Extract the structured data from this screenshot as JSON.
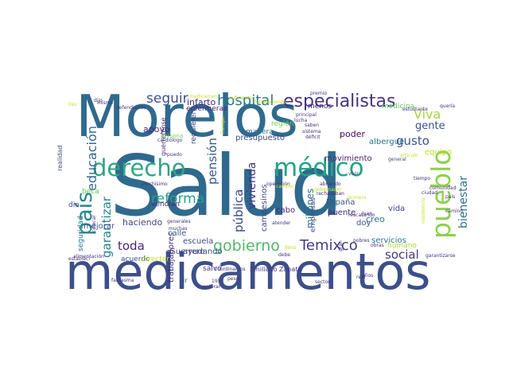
{
  "title": "",
  "colors": {
    "background": "#ffffff",
    "palette": [
      "#2f6a8e",
      "#3b5f8c",
      "#31a584",
      "#21918c",
      "#51b96a",
      "#8cd149",
      "#b5de2b",
      "#443b84",
      "#482576",
      "#46317e"
    ]
  },
  "words": [
    {
      "text": "Salud",
      "color": "#2f6a8e"
    },
    {
      "text": "Morelos",
      "color": "#2f6a8e"
    },
    {
      "text": "medicamentos",
      "color": "#3b4f8a"
    },
    {
      "text": "derecho",
      "color": "#31a584"
    },
    {
      "text": "médico",
      "color": "#21a685"
    },
    {
      "text": "pueblo",
      "color": "#8cd149"
    },
    {
      "text": "país",
      "color": "#25858e"
    },
    {
      "text": "especialistas",
      "color": "#46317e"
    },
    {
      "text": "hospital",
      "color": "#2a788e"
    },
    {
      "text": "gobierno",
      "color": "#51b96a"
    },
    {
      "text": "seguir",
      "color": "#3b528b"
    },
    {
      "text": "Temixco",
      "color": "#443b84"
    },
    {
      "text": "reforma",
      "color": "#2a9d8f"
    },
    {
      "text": "Viva",
      "color": "#a7d63c"
    },
    {
      "text": "educación",
      "color": "#31688e"
    },
    {
      "text": "bienestar",
      "color": "#2c728e"
    },
    {
      "text": "gusto",
      "color": "#3b528b"
    },
    {
      "text": "pensión",
      "color": "#38598c"
    },
    {
      "text": "pública",
      "color": "#3e4989"
    },
    {
      "text": "social",
      "color": "#443983"
    },
    {
      "text": "toda",
      "color": "#482374"
    },
    {
      "text": "garantizar",
      "color": "#26828e"
    },
    {
      "text": "vivienda",
      "color": "#46337e"
    },
    {
      "text": "gente",
      "color": "#3b528b"
    },
    {
      "text": "infarto",
      "color": "#482576"
    },
    {
      "text": "apoyo",
      "color": "#482878"
    },
    {
      "text": "millones",
      "color": "#2c728e"
    },
    {
      "text": "presupuesto",
      "color": "#3f4788"
    },
    {
      "text": "campesinos",
      "color": "#414487"
    },
    {
      "text": "movimiento",
      "color": "#482374"
    },
    {
      "text": "poder",
      "color": "#440154"
    },
    {
      "text": "albergue",
      "color": "#2c728e"
    },
    {
      "text": "equipo",
      "color": "#bddf26"
    },
    {
      "text": "región",
      "color": "#7ad151"
    },
    {
      "text": "manera",
      "color": "#2c728e"
    },
    {
      "text": "haciendo",
      "color": "#404688"
    },
    {
      "text": "escuela",
      "color": "#3e4a89"
    },
    {
      "text": "Guerrero",
      "color": "#414487"
    },
    {
      "text": "trabajadores",
      "color": "#472c7a"
    },
    {
      "text": "ayudando",
      "color": "#3b528b"
    },
    {
      "text": "calle",
      "color": "#38598c"
    },
    {
      "text": "vendían",
      "color": "#482878"
    },
    {
      "text": "mejorar",
      "color": "#38598c"
    },
    {
      "text": "seguridad",
      "color": "#2a788e"
    },
    {
      "text": "creo",
      "color": "#2a788e"
    },
    {
      "text": "vida",
      "color": "#414487"
    },
    {
      "text": "España",
      "color": "#3b528b"
    },
    {
      "text": "puente",
      "color": "#482576"
    },
    {
      "text": "doy",
      "color": "#3b528b"
    },
    {
      "text": "servicios",
      "color": "#2c728e"
    },
    {
      "text": "cabo",
      "color": "#482576"
    },
    {
      "text": "salvó",
      "color": "#46337e"
    },
    {
      "text": "requieren",
      "color": "#414487"
    },
    {
      "text": "enfermeras",
      "color": "#482576"
    },
    {
      "text": "acuerdo",
      "color": "#3b528b"
    },
    {
      "text": "director",
      "color": "#c2df23"
    },
    {
      "text": "guerrerense",
      "color": "#472f7d"
    },
    {
      "text": "medicina",
      "color": "#5ec962"
    },
    {
      "text": "menos",
      "color": "#482374"
    },
    {
      "text": "dio",
      "color": "#3e4a89"
    },
    {
      "text": "beca",
      "color": "#5ec962"
    },
    {
      "text": "realidad",
      "color": "#3f4788"
    },
    {
      "text": "ir",
      "color": "#3b528b"
    },
    {
      "text": "humano",
      "color": "#a5db36"
    },
    {
      "text": "empresas",
      "color": "#3b528b"
    },
    {
      "text": "persona",
      "color": "#7ad151"
    },
    {
      "text": "lucha",
      "color": "#46337e"
    },
    {
      "text": "principal",
      "color": "#46337e"
    },
    {
      "text": "Europa",
      "color": "#b5de2b"
    },
    {
      "text": "general",
      "color": "#404688"
    },
    {
      "text": "rechazaban",
      "color": "#482374"
    },
    {
      "text": "Juan",
      "color": "#443983"
    },
    {
      "text": "saben",
      "color": "#46337e"
    },
    {
      "text": "sistema",
      "color": "#46337e"
    },
    {
      "text": "déficit",
      "color": "#46337e"
    },
    {
      "text": "premio",
      "color": "#46337e"
    },
    {
      "text": "gobernador",
      "color": "#bddf26"
    },
    {
      "text": "abriendo",
      "color": "#482576"
    },
    {
      "text": "Emiliano Zapata",
      "color": "#443983"
    },
    {
      "text": "Coordinamos",
      "color": "#46337e"
    },
    {
      "text": "atender",
      "color": "#46337e"
    },
    {
      "text": "resistencia",
      "color": "#c8e020"
    },
    {
      "text": "rescatando",
      "color": "#46337e"
    },
    {
      "text": "garantizarse",
      "color": "#46337e"
    },
    {
      "text": "alimentación",
      "color": "#46337e"
    },
    {
      "text": "fantasma",
      "color": "#46337e"
    },
    {
      "text": "generales",
      "color": "#46337e"
    },
    {
      "text": "muchas",
      "color": "#46337e"
    },
    {
      "text": "pesos",
      "color": "#46337e"
    },
    {
      "text": "dijo",
      "color": "#46337e"
    },
    {
      "text": "estudiante",
      "color": "#46337e"
    },
    {
      "text": "quería",
      "color": "#46337e"
    },
    {
      "text": "suficiente",
      "color": "#c2df23"
    },
    {
      "text": "medicamen",
      "color": "#c2df23"
    },
    {
      "text": "fortaleciendo",
      "color": "#c2df23"
    },
    {
      "text": "mismo",
      "color": "#46337e"
    },
    {
      "text": "defendiendo",
      "color": "#46337e"
    },
    {
      "text": "cardiólogo",
      "color": "#46337e"
    },
    {
      "text": "muchísimo",
      "color": "#46337e"
    },
    {
      "text": "sector",
      "color": "#46337e"
    },
    {
      "text": "1955",
      "color": "#46337e"
    },
    {
      "text": "enterar",
      "color": "#46337e"
    },
    {
      "text": "puedo",
      "color": "#46337e"
    },
    {
      "text": "obras",
      "color": "#46337e"
    },
    {
      "text": "operación",
      "color": "#46337e"
    },
    {
      "text": "artículo",
      "color": "#c8e020"
    },
    {
      "text": "colocar",
      "color": "#46337e"
    },
    {
      "text": "estableci",
      "color": "#46337e"
    },
    {
      "text": "liso",
      "color": "#c8e020"
    },
    {
      "text": "real",
      "color": "#46337e"
    },
    {
      "text": "cambio",
      "color": "#c8e020"
    },
    {
      "text": "camino",
      "color": "#46337e"
    },
    {
      "text": "primero",
      "color": "#c2df23"
    },
    {
      "text": "comunidad",
      "color": "#46337e"
    },
    {
      "text": "lleno",
      "color": "#c8e020"
    },
    {
      "text": "años",
      "color": "#46337e"
    },
    {
      "text": "ciudad",
      "color": "#46337e"
    },
    {
      "text": "gran",
      "color": "#46337e"
    },
    {
      "text": "vivir",
      "color": "#46337e"
    },
    {
      "text": "pobres",
      "color": "#46337e"
    },
    {
      "text": "debe",
      "color": "#46337e"
    },
    {
      "text": "país",
      "color": "#46337e"
    },
    {
      "text": "tiempo",
      "color": "#46337e"
    }
  ]
}
